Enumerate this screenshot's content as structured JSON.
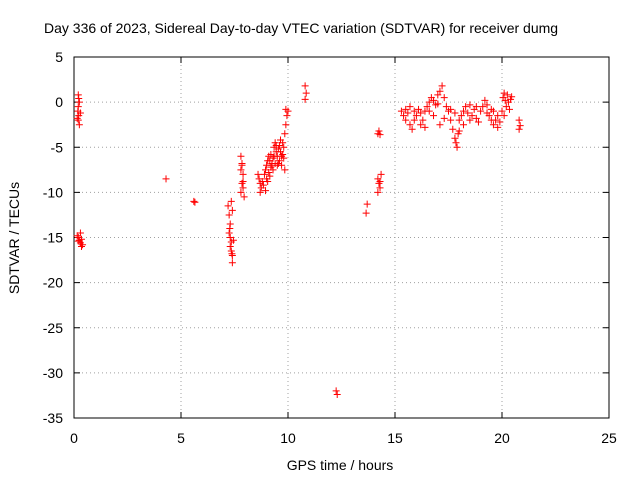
{
  "chart_data": {
    "type": "scatter",
    "title": "Day 336 of 2023, Sidereal Day-to-day VTEC variation (SDTVAR) for receiver dumg",
    "xlabel": "GPS time / hours",
    "ylabel": "SDTVAR / TECUs",
    "xlim": [
      0,
      25
    ],
    "ylim": [
      -35,
      5
    ],
    "x_ticks": [
      0,
      5,
      10,
      15,
      20,
      25
    ],
    "y_ticks": [
      5,
      0,
      -5,
      -10,
      -15,
      -20,
      -25,
      -30,
      -35
    ],
    "x_tick_labels": [
      "0",
      "5",
      "10",
      "15",
      "20",
      "25"
    ],
    "y_tick_labels": [
      "5",
      "0",
      "-5",
      "-10",
      "-15",
      "-20",
      "-25",
      "-30",
      "-35"
    ],
    "grid": true,
    "marker": "+",
    "marker_color": "#ff0000",
    "series": [
      {
        "name": "SDTVAR",
        "points": [
          [
            0.2,
            0.8
          ],
          [
            0.22,
            0.4
          ],
          [
            0.25,
            0.0
          ],
          [
            0.2,
            -0.5
          ],
          [
            0.18,
            -1.0
          ],
          [
            0.22,
            -1.5
          ],
          [
            0.2,
            -2.0
          ],
          [
            0.25,
            -2.5
          ],
          [
            0.3,
            -1.2
          ],
          [
            0.15,
            -1.8
          ],
          [
            0.15,
            -14.8
          ],
          [
            0.2,
            -15.0
          ],
          [
            0.25,
            -15.3
          ],
          [
            0.3,
            -15.6
          ],
          [
            0.35,
            -16.0
          ],
          [
            0.3,
            -14.5
          ],
          [
            0.4,
            -15.8
          ],
          [
            0.2,
            -15.4
          ],
          [
            0.35,
            -15.2
          ],
          [
            4.3,
            -8.5
          ],
          [
            5.6,
            -11.0
          ],
          [
            5.65,
            -11.1
          ],
          [
            7.2,
            -11.5
          ],
          [
            7.25,
            -12.5
          ],
          [
            7.3,
            -13.5
          ],
          [
            7.25,
            -14.5
          ],
          [
            7.3,
            -15.0
          ],
          [
            7.35,
            -15.5
          ],
          [
            7.3,
            -16.0
          ],
          [
            7.35,
            -16.5
          ],
          [
            7.4,
            -17.0
          ],
          [
            7.4,
            -17.8
          ],
          [
            7.35,
            -11.0
          ],
          [
            7.4,
            -12.0
          ],
          [
            7.45,
            -15.3
          ],
          [
            7.28,
            -14.0
          ],
          [
            7.38,
            -16.8
          ],
          [
            7.8,
            -6.0
          ],
          [
            7.85,
            -6.8
          ],
          [
            7.8,
            -7.5
          ],
          [
            7.9,
            -8.0
          ],
          [
            7.85,
            -9.0
          ],
          [
            7.9,
            -9.5
          ],
          [
            7.8,
            -10.0
          ],
          [
            7.95,
            -10.5
          ],
          [
            7.85,
            -7.0
          ],
          [
            7.9,
            -8.8
          ],
          [
            8.6,
            -8.0
          ],
          [
            8.65,
            -8.5
          ],
          [
            8.7,
            -9.0
          ],
          [
            8.75,
            -9.5
          ],
          [
            8.7,
            -10.0
          ],
          [
            8.8,
            -8.8
          ],
          [
            8.9,
            -8.0
          ],
          [
            8.95,
            -7.5
          ],
          [
            9.0,
            -7.0
          ],
          [
            9.05,
            -6.5
          ],
          [
            9.1,
            -6.0
          ],
          [
            9.15,
            -6.5
          ],
          [
            9.2,
            -5.8
          ],
          [
            9.25,
            -7.0
          ],
          [
            9.3,
            -6.2
          ],
          [
            9.35,
            -5.0
          ],
          [
            9.4,
            -4.5
          ],
          [
            9.45,
            -5.5
          ],
          [
            9.5,
            -6.0
          ],
          [
            9.55,
            -5.2
          ],
          [
            9.6,
            -4.8
          ],
          [
            9.65,
            -5.5
          ],
          [
            9.7,
            -6.0
          ],
          [
            9.75,
            -4.5
          ],
          [
            9.8,
            -5.0
          ],
          [
            9.85,
            -3.5
          ],
          [
            9.9,
            -2.5
          ],
          [
            9.95,
            -1.5
          ],
          [
            10.0,
            -1.0
          ],
          [
            9.9,
            -0.8
          ],
          [
            9.0,
            -8.5
          ],
          [
            9.1,
            -7.8
          ],
          [
            9.2,
            -7.2
          ],
          [
            9.3,
            -7.5
          ],
          [
            9.4,
            -6.8
          ],
          [
            9.5,
            -7.0
          ],
          [
            9.6,
            -6.5
          ],
          [
            9.7,
            -7.0
          ],
          [
            9.8,
            -6.2
          ],
          [
            9.85,
            -7.5
          ],
          [
            8.85,
            -9.2
          ],
          [
            8.95,
            -9.8
          ],
          [
            9.05,
            -8.8
          ],
          [
            9.15,
            -8.2
          ],
          [
            9.25,
            -6.8
          ],
          [
            9.35,
            -6.0
          ],
          [
            9.45,
            -4.8
          ],
          [
            9.55,
            -6.8
          ],
          [
            9.65,
            -4.2
          ],
          [
            9.75,
            -5.8
          ],
          [
            10.8,
            1.8
          ],
          [
            10.85,
            1.0
          ],
          [
            10.8,
            0.3
          ],
          [
            12.25,
            -32.0
          ],
          [
            12.3,
            -32.4
          ],
          [
            13.7,
            -11.3
          ],
          [
            13.65,
            -12.3
          ],
          [
            14.2,
            -3.5
          ],
          [
            14.25,
            -3.2
          ],
          [
            14.3,
            -3.6
          ],
          [
            14.2,
            -8.5
          ],
          [
            14.25,
            -9.0
          ],
          [
            14.3,
            -9.5
          ],
          [
            14.2,
            -10.0
          ],
          [
            14.35,
            -8.0
          ],
          [
            14.3,
            -8.8
          ],
          [
            15.3,
            -1.0
          ],
          [
            15.4,
            -1.5
          ],
          [
            15.5,
            -2.0
          ],
          [
            15.6,
            -1.2
          ],
          [
            15.7,
            -2.5
          ],
          [
            15.8,
            -3.0
          ],
          [
            15.9,
            -2.0
          ],
          [
            16.0,
            -1.5
          ],
          [
            16.1,
            -0.8
          ],
          [
            16.2,
            -1.2
          ],
          [
            16.3,
            -2.0
          ],
          [
            16.4,
            -1.0
          ],
          [
            16.5,
            -0.5
          ],
          [
            16.6,
            0.0
          ],
          [
            16.7,
            0.5
          ],
          [
            16.8,
            0.2
          ],
          [
            16.9,
            -0.3
          ],
          [
            17.0,
            0.8
          ],
          [
            17.1,
            1.2
          ],
          [
            17.2,
            1.8
          ],
          [
            17.3,
            0.5
          ],
          [
            17.4,
            -0.5
          ],
          [
            17.5,
            -1.0
          ],
          [
            17.6,
            -2.0
          ],
          [
            17.7,
            -3.0
          ],
          [
            17.8,
            -4.0
          ],
          [
            17.85,
            -4.5
          ],
          [
            17.9,
            -5.0
          ],
          [
            17.95,
            -3.5
          ],
          [
            18.0,
            -2.0
          ],
          [
            18.1,
            -1.5
          ],
          [
            18.2,
            -1.0
          ],
          [
            18.3,
            -0.5
          ],
          [
            18.4,
            -1.2
          ],
          [
            18.5,
            -2.0
          ],
          [
            18.6,
            -1.5
          ],
          [
            18.7,
            -0.8
          ],
          [
            18.8,
            -1.8
          ],
          [
            18.9,
            -2.2
          ],
          [
            19.0,
            -1.0
          ],
          [
            19.1,
            -0.5
          ],
          [
            19.2,
            0.2
          ],
          [
            19.3,
            -0.3
          ],
          [
            19.4,
            -1.5
          ],
          [
            19.5,
            -2.0
          ],
          [
            19.6,
            -2.5
          ],
          [
            19.7,
            -2.0
          ],
          [
            19.8,
            -1.5
          ],
          [
            19.9,
            -2.2
          ],
          [
            20.0,
            -1.0
          ],
          [
            20.05,
            0.5
          ],
          [
            20.1,
            1.0
          ],
          [
            20.15,
            0.2
          ],
          [
            20.2,
            -0.5
          ],
          [
            20.25,
            0.8
          ],
          [
            20.3,
            0.0
          ],
          [
            20.35,
            -0.8
          ],
          [
            20.4,
            0.3
          ],
          [
            20.45,
            0.6
          ],
          [
            20.1,
            -1.5
          ],
          [
            20.8,
            -2.0
          ],
          [
            20.85,
            -2.6
          ],
          [
            20.8,
            -3.0
          ],
          [
            15.5,
            -0.8
          ],
          [
            15.9,
            -1.0
          ],
          [
            16.2,
            -2.5
          ],
          [
            16.8,
            -1.5
          ],
          [
            17.0,
            -0.2
          ],
          [
            17.3,
            -1.8
          ],
          [
            17.6,
            -0.8
          ],
          [
            18.2,
            -2.5
          ],
          [
            18.8,
            -0.5
          ],
          [
            19.3,
            -1.2
          ],
          [
            19.8,
            -2.8
          ],
          [
            16.6,
            -1.0
          ],
          [
            17.8,
            -1.2
          ],
          [
            18.5,
            -0.3
          ],
          [
            19.5,
            -0.8
          ],
          [
            15.7,
            -0.5
          ],
          [
            16.4,
            -2.8
          ],
          [
            17.1,
            -2.5
          ],
          [
            18.0,
            -3.2
          ],
          [
            19.6,
            -1.0
          ]
        ]
      }
    ]
  }
}
